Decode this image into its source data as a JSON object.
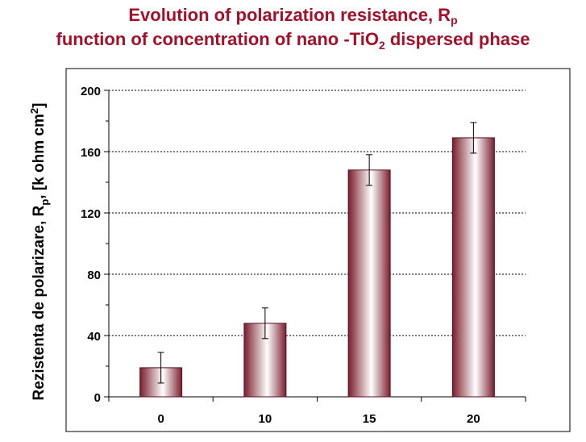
{
  "title": {
    "line1_text": "Evolution of polarization resistance, R",
    "line1_sub": "p",
    "line2_text": "function of concentration of nano -TiO",
    "line2_sub": "2",
    "line2_tail": " dispersed phase"
  },
  "ylabel": {
    "part1": "Rezistenta de polarizare,  R",
    "sub": "p",
    "part2": ", [k ohm cm",
    "sup": "2",
    "part3": "]"
  },
  "colors": {
    "title": "#a3102a",
    "bar_dark": "#7a1e2e",
    "bar_light": "#ffffff",
    "bar_edge": "#5a1020",
    "gridline": "#000000",
    "frame": "#000000"
  },
  "chart_data": {
    "type": "bar",
    "categories": [
      "0",
      "10",
      "15",
      "20"
    ],
    "series": [
      {
        "values": [
          19,
          48,
          148,
          169
        ],
        "error": [
          10,
          10,
          10,
          10
        ]
      }
    ],
    "ylim": [
      0,
      200
    ],
    "yticks": [
      0,
      40,
      80,
      120,
      160,
      200
    ],
    "grid": "horizontal dashed",
    "legend": "none"
  }
}
